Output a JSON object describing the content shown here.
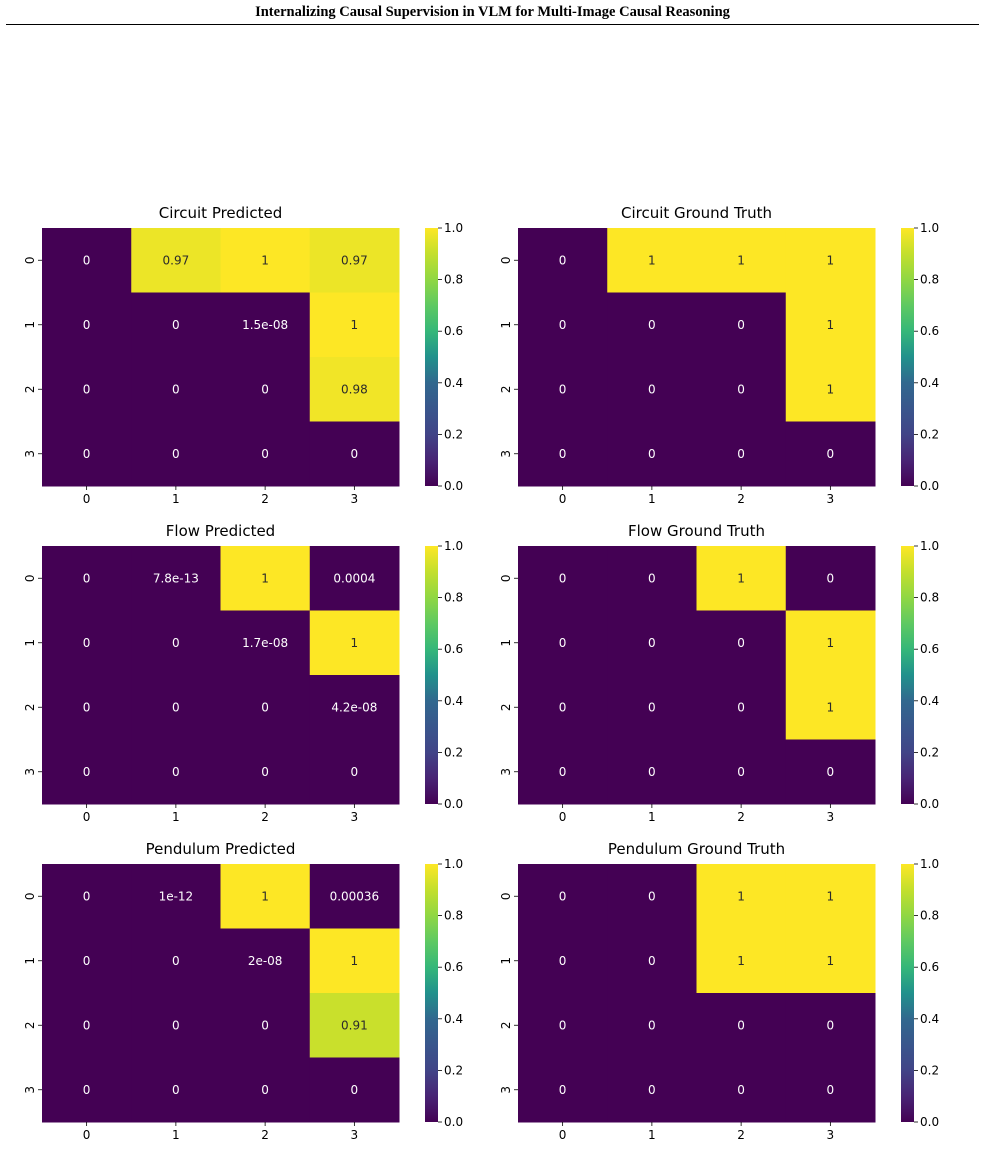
{
  "header": {
    "title": "Internalizing Causal Supervision in VLM for Multi-Image Causal Reasoning"
  },
  "colors": {
    "low": "#440154",
    "high": "#fde725",
    "text_dark": "#2b2b2b",
    "text_light": "#ffffff"
  },
  "chart_data": [
    {
      "type": "heatmap",
      "title": "Circuit Predicted",
      "x_tick_labels": [
        "0",
        "1",
        "2",
        "3"
      ],
      "y_tick_labels": [
        "0",
        "1",
        "2",
        "3"
      ],
      "colorbar": {
        "range": [
          0.0,
          1.0
        ],
        "tick_labels": [
          "0.0",
          "0.2",
          "0.4",
          "0.6",
          "0.8",
          "1.0"
        ],
        "colormap": "viridis"
      },
      "values": [
        [
          0,
          0.97,
          1,
          0.97
        ],
        [
          0,
          0,
          1.5e-08,
          1
        ],
        [
          0,
          0,
          0,
          0.98
        ],
        [
          0,
          0,
          0,
          0
        ]
      ],
      "cell_labels": [
        [
          "0",
          "0.97",
          "1",
          "0.97"
        ],
        [
          "0",
          "0",
          "1.5e-08",
          "1"
        ],
        [
          "0",
          "0",
          "0",
          "0.98"
        ],
        [
          "0",
          "0",
          "0",
          "0"
        ]
      ]
    },
    {
      "type": "heatmap",
      "title": "Circuit Ground Truth",
      "x_tick_labels": [
        "0",
        "1",
        "2",
        "3"
      ],
      "y_tick_labels": [
        "0",
        "1",
        "2",
        "3"
      ],
      "colorbar": {
        "range": [
          0.0,
          1.0
        ],
        "tick_labels": [
          "0.0",
          "0.2",
          "0.4",
          "0.6",
          "0.8",
          "1.0"
        ],
        "colormap": "viridis"
      },
      "values": [
        [
          0,
          1,
          1,
          1
        ],
        [
          0,
          0,
          0,
          1
        ],
        [
          0,
          0,
          0,
          1
        ],
        [
          0,
          0,
          0,
          0
        ]
      ],
      "cell_labels": [
        [
          "0",
          "1",
          "1",
          "1"
        ],
        [
          "0",
          "0",
          "0",
          "1"
        ],
        [
          "0",
          "0",
          "0",
          "1"
        ],
        [
          "0",
          "0",
          "0",
          "0"
        ]
      ]
    },
    {
      "type": "heatmap",
      "title": "Flow Predicted",
      "x_tick_labels": [
        "0",
        "1",
        "2",
        "3"
      ],
      "y_tick_labels": [
        "0",
        "1",
        "2",
        "3"
      ],
      "colorbar": {
        "range": [
          0.0,
          1.0
        ],
        "tick_labels": [
          "0.0",
          "0.2",
          "0.4",
          "0.6",
          "0.8",
          "1.0"
        ],
        "colormap": "viridis"
      },
      "values": [
        [
          0,
          7.8e-13,
          1,
          0.0004
        ],
        [
          0,
          0,
          1.7e-08,
          1
        ],
        [
          0,
          0,
          0,
          4.2e-08
        ],
        [
          0,
          0,
          0,
          0
        ]
      ],
      "cell_labels": [
        [
          "0",
          "7.8e-13",
          "1",
          "0.0004"
        ],
        [
          "0",
          "0",
          "1.7e-08",
          "1"
        ],
        [
          "0",
          "0",
          "0",
          "4.2e-08"
        ],
        [
          "0",
          "0",
          "0",
          "0"
        ]
      ]
    },
    {
      "type": "heatmap",
      "title": "Flow Ground Truth",
      "x_tick_labels": [
        "0",
        "1",
        "2",
        "3"
      ],
      "y_tick_labels": [
        "0",
        "1",
        "2",
        "3"
      ],
      "colorbar": {
        "range": [
          0.0,
          1.0
        ],
        "tick_labels": [
          "0.0",
          "0.2",
          "0.4",
          "0.6",
          "0.8",
          "1.0"
        ],
        "colormap": "viridis"
      },
      "values": [
        [
          0,
          0,
          1,
          0
        ],
        [
          0,
          0,
          0,
          1
        ],
        [
          0,
          0,
          0,
          1
        ],
        [
          0,
          0,
          0,
          0
        ]
      ],
      "cell_labels": [
        [
          "0",
          "0",
          "1",
          "0"
        ],
        [
          "0",
          "0",
          "0",
          "1"
        ],
        [
          "0",
          "0",
          "0",
          "1"
        ],
        [
          "0",
          "0",
          "0",
          "0"
        ]
      ]
    },
    {
      "type": "heatmap",
      "title": "Pendulum Predicted",
      "x_tick_labels": [
        "0",
        "1",
        "2",
        "3"
      ],
      "y_tick_labels": [
        "0",
        "1",
        "2",
        "3"
      ],
      "colorbar": {
        "range": [
          0.0,
          1.0
        ],
        "tick_labels": [
          "0.0",
          "0.2",
          "0.4",
          "0.6",
          "0.8",
          "1.0"
        ],
        "colormap": "viridis"
      },
      "values": [
        [
          0,
          1e-12,
          1,
          0.00036
        ],
        [
          0,
          0,
          2e-08,
          1
        ],
        [
          0,
          0,
          0,
          0.91
        ],
        [
          0,
          0,
          0,
          0
        ]
      ],
      "cell_labels": [
        [
          "0",
          "1e-12",
          "1",
          "0.00036"
        ],
        [
          "0",
          "0",
          "2e-08",
          "1"
        ],
        [
          "0",
          "0",
          "0",
          "0.91"
        ],
        [
          "0",
          "0",
          "0",
          "0"
        ]
      ]
    },
    {
      "type": "heatmap",
      "title": "Pendulum Ground Truth",
      "x_tick_labels": [
        "0",
        "1",
        "2",
        "3"
      ],
      "y_tick_labels": [
        "0",
        "1",
        "2",
        "3"
      ],
      "colorbar": {
        "range": [
          0.0,
          1.0
        ],
        "tick_labels": [
          "0.0",
          "0.2",
          "0.4",
          "0.6",
          "0.8",
          "1.0"
        ],
        "colormap": "viridis"
      },
      "values": [
        [
          0,
          0,
          1,
          1
        ],
        [
          0,
          0,
          1,
          1
        ],
        [
          0,
          0,
          0,
          0
        ],
        [
          0,
          0,
          0,
          0
        ]
      ],
      "cell_labels": [
        [
          "0",
          "0",
          "1",
          "1"
        ],
        [
          "0",
          "0",
          "1",
          "1"
        ],
        [
          "0",
          "0",
          "0",
          "0"
        ],
        [
          "0",
          "0",
          "0",
          "0"
        ]
      ]
    }
  ]
}
